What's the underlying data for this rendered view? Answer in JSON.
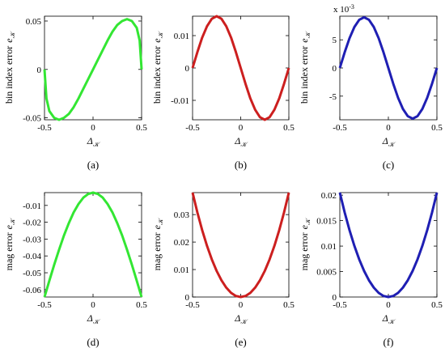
{
  "chart_data": [
    {
      "type": "line",
      "panel": "(a)",
      "color": "#33e633",
      "ylabel": {
        "text": "bin index error",
        "var": "e",
        "sub": "𝒦"
      },
      "xlabel": {
        "var": "Δ",
        "sub": "𝒦"
      },
      "x": [
        -0.5,
        -0.48,
        -0.45,
        -0.4,
        -0.35,
        -0.3,
        -0.25,
        -0.2,
        -0.15,
        -0.1,
        -0.05,
        0,
        0.05,
        0.1,
        0.15,
        0.2,
        0.25,
        0.3,
        0.35,
        0.4,
        0.45,
        0.48,
        0.5
      ],
      "values": [
        0,
        -0.03,
        -0.043,
        -0.05,
        -0.052,
        -0.05,
        -0.046,
        -0.039,
        -0.03,
        -0.02,
        -0.01,
        0,
        0.01,
        0.02,
        0.03,
        0.039,
        0.046,
        0.05,
        0.052,
        0.05,
        0.043,
        0.03,
        0
      ],
      "xlim": [
        -0.5,
        0.5
      ],
      "xticks": [
        -0.5,
        0,
        0.5
      ],
      "ylim": [
        -0.052,
        0.055
      ],
      "yticks": [
        -0.05,
        0,
        0.05
      ]
    },
    {
      "type": "line",
      "panel": "(b)",
      "color": "#cc1f1f",
      "ylabel": {
        "text": "bin index error",
        "var": "e",
        "sub": "𝒦"
      },
      "xlabel": {
        "var": "Δ",
        "sub": "𝒦"
      },
      "x": [
        -0.5,
        -0.45,
        -0.4,
        -0.35,
        -0.3,
        -0.25,
        -0.2,
        -0.15,
        -0.1,
        -0.05,
        0,
        0.05,
        0.1,
        0.15,
        0.2,
        0.25,
        0.3,
        0.35,
        0.4,
        0.45,
        0.5
      ],
      "values": [
        0,
        0.0049,
        0.0094,
        0.0129,
        0.0152,
        0.016,
        0.0152,
        0.0129,
        0.0094,
        0.0049,
        0,
        -0.0049,
        -0.0094,
        -0.0129,
        -0.0152,
        -0.016,
        -0.0152,
        -0.0129,
        -0.0094,
        -0.0049,
        0
      ],
      "xlim": [
        -0.5,
        0.5
      ],
      "xticks": [
        -0.5,
        0,
        0.5
      ],
      "ylim": [
        -0.016,
        0.016
      ],
      "yticks": [
        -0.01,
        0,
        0.01
      ]
    },
    {
      "type": "line",
      "panel": "(c)",
      "color": "#1f1fb3",
      "ylabel": {
        "text": "bin index error",
        "var": "e",
        "sub": "𝒦"
      },
      "xlabel": {
        "var": "Δ",
        "sub": "𝒦"
      },
      "multiplier": {
        "base": "x 10",
        "exponent": "-3"
      },
      "x": [
        -0.5,
        -0.45,
        -0.4,
        -0.35,
        -0.3,
        -0.25,
        -0.2,
        -0.15,
        -0.1,
        -0.05,
        0,
        0.05,
        0.1,
        0.15,
        0.2,
        0.25,
        0.3,
        0.35,
        0.4,
        0.45,
        0.5
      ],
      "values": [
        0,
        0.00278,
        0.00529,
        0.00728,
        0.00856,
        0.009,
        0.00856,
        0.00728,
        0.00529,
        0.00278,
        0,
        -0.00278,
        -0.00529,
        -0.00728,
        -0.00856,
        -0.009,
        -0.00856,
        -0.00728,
        -0.00529,
        -0.00278,
        0
      ],
      "xlim": [
        -0.5,
        0.5
      ],
      "xticks": [
        -0.5,
        0,
        0.5
      ],
      "ylim": [
        -0.0092,
        0.0092
      ],
      "yticks": [
        {
          "value": -0.005,
          "label": "-5"
        },
        0,
        {
          "value": 0.005,
          "label": "5"
        }
      ]
    },
    {
      "type": "line",
      "panel": "(d)",
      "color": "#33e633",
      "ylabel": {
        "text": "mag error",
        "var": "e",
        "sub": "𝒦"
      },
      "xlabel": {
        "var": "Δ",
        "sub": "𝒦"
      },
      "x": [
        -0.5,
        -0.45,
        -0.4,
        -0.35,
        -0.3,
        -0.25,
        -0.2,
        -0.15,
        -0.1,
        -0.05,
        0,
        0.05,
        0.1,
        0.15,
        0.2,
        0.25,
        0.3,
        0.35,
        0.4,
        0.45,
        0.5
      ],
      "values": [
        -0.0644,
        -0.0547,
        -0.0452,
        -0.0363,
        -0.0279,
        -0.0206,
        -0.0142,
        -0.0092,
        -0.0054,
        -0.0032,
        -0.0024,
        -0.0032,
        -0.0054,
        -0.0092,
        -0.0142,
        -0.0206,
        -0.0279,
        -0.0363,
        -0.0452,
        -0.0547,
        -0.0644
      ],
      "xlim": [
        -0.5,
        0.5
      ],
      "xticks": [
        -0.5,
        0,
        0.5
      ],
      "ylim": [
        -0.0644,
        -0.0024
      ],
      "yticks": [
        -0.06,
        -0.05,
        -0.04,
        -0.03,
        -0.02,
        -0.01
      ]
    },
    {
      "type": "line",
      "panel": "(e)",
      "color": "#cc1f1f",
      "ylabel": {
        "text": "mag error",
        "var": "e",
        "sub": "𝒦"
      },
      "xlabel": {
        "var": "Δ",
        "sub": "𝒦"
      },
      "x": [
        -0.5,
        -0.45,
        -0.4,
        -0.35,
        -0.3,
        -0.25,
        -0.2,
        -0.15,
        -0.1,
        -0.05,
        0,
        0.05,
        0.1,
        0.15,
        0.2,
        0.25,
        0.3,
        0.35,
        0.4,
        0.45,
        0.5
      ],
      "values": [
        0.038,
        0.03078,
        0.02432,
        0.01862,
        0.01368,
        0.0095,
        0.00608,
        0.00342,
        0.00152,
        0.00038,
        0,
        0.00038,
        0.00152,
        0.00342,
        0.00608,
        0.0095,
        0.01368,
        0.01862,
        0.02432,
        0.03078,
        0.038
      ],
      "xlim": [
        -0.5,
        0.5
      ],
      "xticks": [
        -0.5,
        0,
        0.5
      ],
      "ylim": [
        0,
        0.038
      ],
      "yticks": [
        0,
        0.01,
        0.02,
        0.03
      ]
    },
    {
      "type": "line",
      "panel": "(f)",
      "color": "#1f1fb3",
      "ylabel": {
        "text": "mag error",
        "var": "e",
        "sub": "𝒦"
      },
      "xlabel": {
        "var": "Δ",
        "sub": "𝒦"
      },
      "x": [
        -0.5,
        -0.45,
        -0.4,
        -0.35,
        -0.3,
        -0.25,
        -0.2,
        -0.15,
        -0.1,
        -0.05,
        0,
        0.05,
        0.1,
        0.15,
        0.2,
        0.25,
        0.3,
        0.35,
        0.4,
        0.45,
        0.5
      ],
      "values": [
        0.0205,
        0.016605,
        0.01312,
        0.010045,
        0.00738,
        0.005125,
        0.00328,
        0.001845,
        0.00082,
        0.000205,
        0,
        0.000205,
        0.00082,
        0.001845,
        0.00328,
        0.005125,
        0.00738,
        0.010045,
        0.01312,
        0.016605,
        0.0205
      ],
      "xlim": [
        -0.5,
        0.5
      ],
      "xticks": [
        -0.5,
        0,
        0.5
      ],
      "ylim": [
        0,
        0.0205
      ],
      "yticks": [
        0,
        0.005,
        0.01,
        0.015,
        0.02
      ]
    }
  ]
}
